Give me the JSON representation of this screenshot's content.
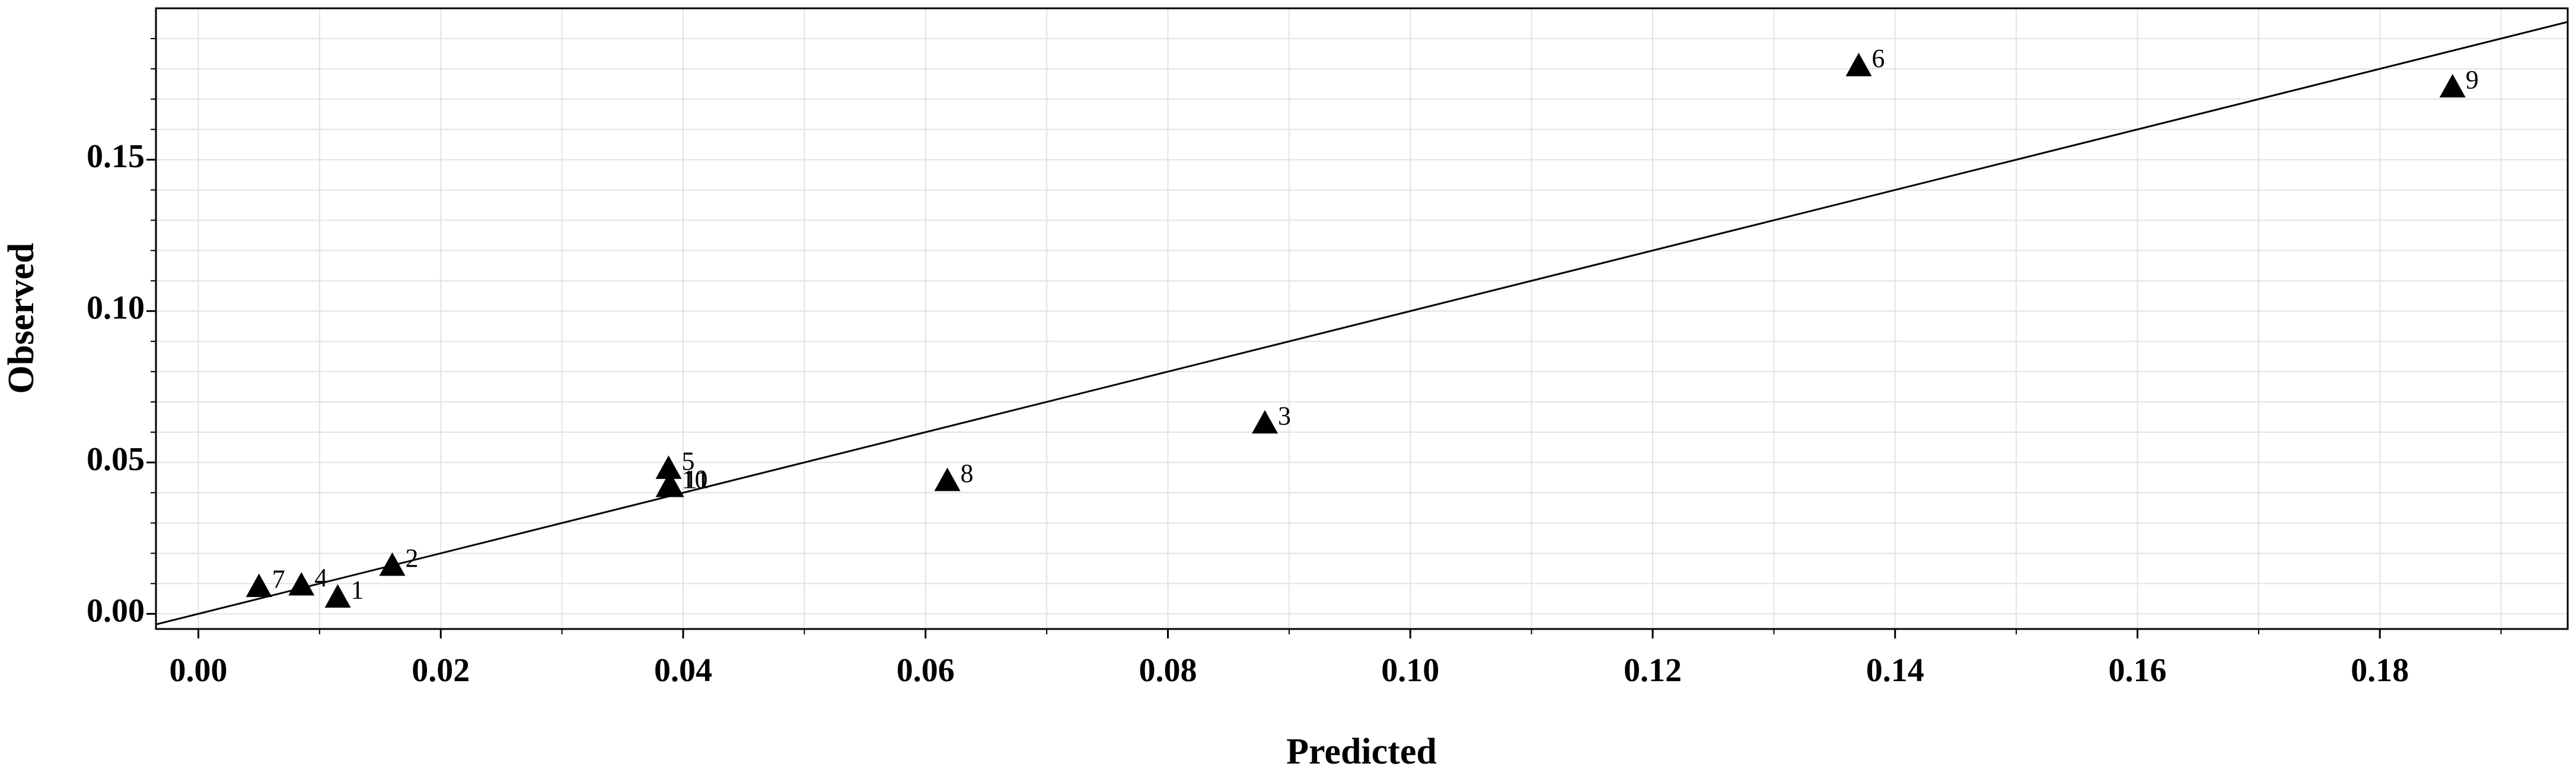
{
  "chart_data": {
    "type": "scatter",
    "x_label": "Predicted",
    "y_label": "Observed",
    "labels": [
      "1",
      "2",
      "3",
      "4",
      "5",
      "6",
      "7",
      "8",
      "9",
      "10",
      "11"
    ],
    "x": [
      0.0115,
      0.016,
      0.088,
      0.0085,
      0.0388,
      0.137,
      0.005,
      0.0618,
      0.186,
      0.0388,
      0.039
    ],
    "y": [
      0.0055,
      0.016,
      0.063,
      0.0095,
      0.048,
      0.181,
      0.009,
      0.044,
      0.174,
      0.042,
      0.042
    ],
    "color": "#000000",
    "marker": "triangle",
    "xlim": [
      -0.0035,
      0.1955
    ],
    "ylim": [
      -0.005,
      0.2
    ],
    "xticks": [
      {
        "value": 0,
        "label": "0.00"
      },
      {
        "value": 0.02,
        "label": "0.02"
      },
      {
        "value": 0.04,
        "label": "0.04"
      },
      {
        "value": 0.06,
        "label": "0.06"
      },
      {
        "value": 0.08,
        "label": "0.08"
      },
      {
        "value": 0.1,
        "label": "0.10"
      },
      {
        "value": 0.12,
        "label": "0.12"
      },
      {
        "value": 0.14,
        "label": "0.14"
      },
      {
        "value": 0.16,
        "label": "0.16"
      },
      {
        "value": 0.18,
        "label": "0.18"
      }
    ],
    "yticks": [
      {
        "value": 0,
        "label": "0.00"
      },
      {
        "value": 0.05,
        "label": "0.05"
      },
      {
        "value": 0.1,
        "label": "0.10"
      },
      {
        "value": 0.15,
        "label": "0.15"
      }
    ],
    "xminorticks": [
      0.01,
      0.03,
      0.05,
      0.07,
      0.09,
      0.11,
      0.13,
      0.15,
      0.17,
      0.19
    ],
    "yminorticks": [
      0.01,
      0.02,
      0.03,
      0.04,
      0.06,
      0.07,
      0.08,
      0.09,
      0.11,
      0.12,
      0.13,
      0.14,
      0.16,
      0.17,
      0.18,
      0.19
    ],
    "grid": true,
    "identity_line": true
  }
}
